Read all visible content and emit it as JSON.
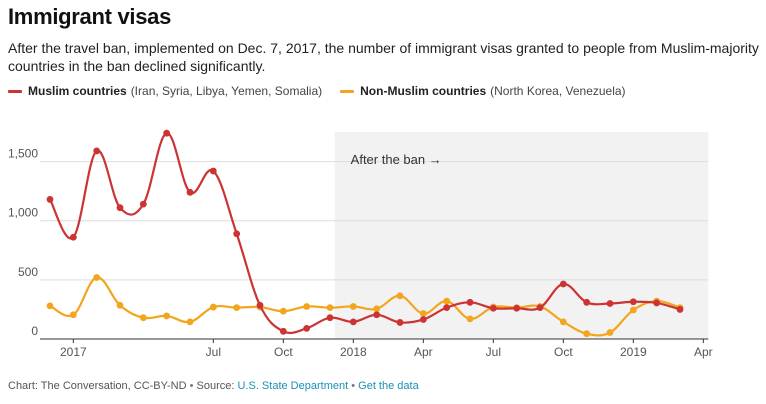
{
  "header": {
    "title": "Immigrant visas",
    "subtitle": "After the travel ban, implemented on Dec. 7, 2017, the number of immigrant visas granted to people from Muslim-majority countries in the ban declined significantly."
  },
  "legend": [
    {
      "name": "Muslim countries",
      "note": "(Iran, Syria, Libya, Yemen, Somalia)",
      "color": "#cc3333"
    },
    {
      "name": "Non-Muslim countries",
      "note": "(North Korea, Venezuela)",
      "color": "#f2a51d"
    }
  ],
  "footer": {
    "credit": "Chart: The Conversation, CC-BY-ND",
    "source_prefix": "Source:",
    "source_link": "U.S. State Department",
    "separator": "•",
    "data_link": "Get the data"
  },
  "chart_data": {
    "type": "line",
    "xlabel": "",
    "ylabel": "",
    "ylim": [
      0,
      1750
    ],
    "yticks": [
      0,
      500,
      1000,
      1500
    ],
    "ytick_labels": [
      "0",
      "500",
      "1,000",
      "1,500"
    ],
    "xticks": [
      {
        "label": "2017",
        "month": 1
      },
      {
        "label": "Jul",
        "month": 7
      },
      {
        "label": "Oct",
        "month": 10
      },
      {
        "label": "Jul",
        "month": 19
      },
      {
        "label": "Apr",
        "month": 16
      },
      {
        "label": "2018",
        "month": 13
      },
      {
        "label": "Oct",
        "month": 22
      },
      {
        "label": "2019",
        "month": 25
      },
      {
        "label": "Apr",
        "month": 28
      }
    ],
    "shaded_region": {
      "from_month": 12.2,
      "to_month": 30,
      "label": "After the ban →",
      "color": "#f2f2f2"
    },
    "series": [
      {
        "name": "Muslim countries",
        "color": "#cc3333",
        "x": [
          0,
          1,
          2,
          3,
          4,
          5,
          6,
          7,
          8,
          9,
          10,
          11,
          12,
          13,
          14,
          15,
          16,
          17,
          18,
          19,
          20,
          21,
          22,
          23,
          24,
          25,
          26,
          27,
          28,
          29,
          30
        ],
        "values": [
          1180,
          860,
          1590,
          1110,
          1140,
          1740,
          1240,
          1420,
          890,
          285,
          65,
          90,
          180,
          145,
          205,
          140,
          165,
          265,
          310,
          260,
          260,
          265,
          465,
          310,
          300,
          315,
          305,
          250,
          null,
          null,
          null
        ]
      },
      {
        "name": "Non-Muslim countries",
        "color": "#f2a51d",
        "x": [
          0,
          1,
          2,
          3,
          4,
          5,
          6,
          7,
          8,
          9,
          10,
          11,
          12,
          13,
          14,
          15,
          16,
          17,
          18,
          19,
          20,
          21,
          22,
          23,
          24,
          25,
          26,
          27,
          28,
          29,
          30
        ],
        "values": [
          280,
          205,
          520,
          285,
          180,
          195,
          145,
          270,
          265,
          270,
          235,
          275,
          265,
          275,
          255,
          365,
          215,
          320,
          170,
          270,
          265,
          275,
          145,
          45,
          55,
          245,
          320,
          265,
          null,
          null,
          null
        ]
      }
    ]
  }
}
